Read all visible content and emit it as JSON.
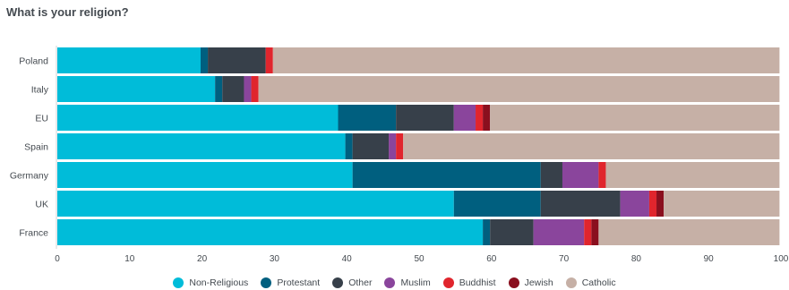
{
  "title": "What is your religion?",
  "chart_data": {
    "type": "bar",
    "orientation": "horizontal",
    "stacked": true,
    "title": "What is your religion?",
    "categories": [
      "Poland",
      "Italy",
      "EU",
      "Spain",
      "Germany",
      "UK",
      "France"
    ],
    "xlim": [
      0,
      100
    ],
    "x_ticks": [
      0,
      10,
      20,
      30,
      40,
      50,
      60,
      70,
      80,
      90,
      100
    ],
    "grid": false,
    "legend_position": "bottom",
    "series": [
      {
        "name": "Non-Religious",
        "color": "#00bcd9",
        "values": [
          19.8,
          21.8,
          38.8,
          39.8,
          40.8,
          54.8,
          58.8
        ]
      },
      {
        "name": "Protestant",
        "color": "#005f7f",
        "values": [
          1,
          1,
          8,
          1,
          26,
          12,
          1
        ]
      },
      {
        "name": "Other",
        "color": "#37404a",
        "values": [
          8,
          3,
          8,
          5,
          3,
          11,
          6
        ]
      },
      {
        "name": "Muslim",
        "color": "#8a459c",
        "values": [
          0,
          1,
          3,
          1,
          5,
          4,
          7
        ]
      },
      {
        "name": "Buddhist",
        "color": "#e0252d",
        "values": [
          1,
          1,
          1,
          1,
          1,
          1,
          1
        ]
      },
      {
        "name": "Jewish",
        "color": "#8a0f1e",
        "values": [
          0,
          0,
          1,
          0,
          0,
          1,
          1
        ]
      },
      {
        "name": "Catholic",
        "color": "#c6b0a6",
        "values": [
          70,
          72,
          40,
          52,
          24,
          16,
          25
        ]
      }
    ]
  }
}
